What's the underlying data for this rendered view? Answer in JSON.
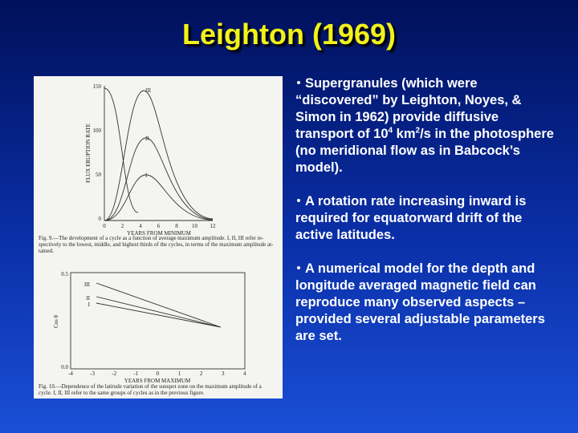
{
  "title": "Leighton (1969)",
  "bullets": [
    [
      "Supergranules (which were “discovered” by Leighton, Noyes, & Simon in 1962) provide diffusive transport of 10",
      "4",
      " km",
      "2",
      "/s in the photosphere (no meridional flow as in Babcock’s model)."
    ],
    [
      "A rotation rate increasing inward is required for equatorward drift of the active latitudes."
    ],
    [
      "A numerical model for the depth and longitude averaged magnetic field can reproduce many observed aspects – provided several adjustable parameters are set."
    ]
  ],
  "figure1": {
    "ylabel": "FLUX ERUPTION RATE",
    "xlabel": "YEARS FROM MINIMUM",
    "yticks": [
      "150",
      "100",
      "50",
      "0"
    ],
    "xticks": [
      "0",
      "2",
      "4",
      "6",
      "8",
      "10",
      "12"
    ],
    "curve_labels": [
      "III",
      "II",
      "I"
    ],
    "caption": [
      "Fig. 9.—The development of a cycle as a function of average maximum amplitude. I, II, III refer re-",
      "spectively to the lowest, middle, and highest thirds of the cycles, in terms of the maximum amplitude at-",
      "tained."
    ]
  },
  "figure2": {
    "ylabel": "Cos θ",
    "xlabel": "YEARS FROM MAXIMUM",
    "yticks": [
      "0.5",
      "0.0"
    ],
    "xticks": [
      "-4",
      "-3",
      "-2",
      "-1",
      "0",
      "1",
      "2",
      "3",
      "4"
    ],
    "curve_labels": [
      "III",
      "II",
      "I"
    ],
    "caption": [
      "Fig. 10.—Dependence of the latitude variation of the sunspot zone on the maximum amplitude of a",
      "cycle. I, II, III refer to the same groups of cycles as in the previous figure."
    ]
  }
}
